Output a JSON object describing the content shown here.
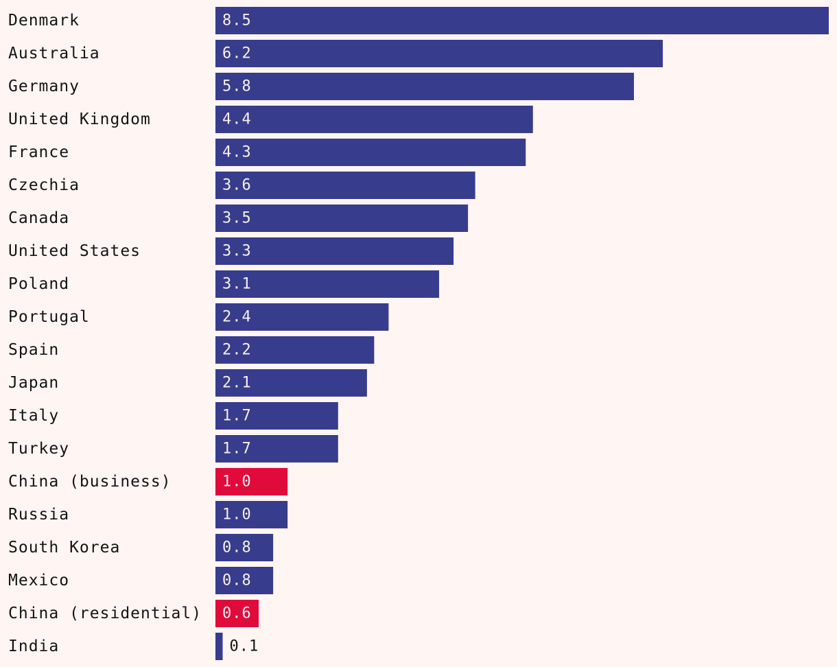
{
  "chart_data": {
    "type": "bar",
    "orientation": "horizontal",
    "categories": [
      "Denmark",
      "Australia",
      "Germany",
      "United Kingdom",
      "France",
      "Czechia",
      "Canada",
      "United States",
      "Poland",
      "Portugal",
      "Spain",
      "Japan",
      "Italy",
      "Turkey",
      "China (business)",
      "Russia",
      "South Korea",
      "Mexico",
      "China (residential)",
      "India"
    ],
    "values": [
      8.5,
      6.2,
      5.8,
      4.4,
      4.3,
      3.6,
      3.5,
      3.3,
      3.1,
      2.4,
      2.2,
      2.1,
      1.7,
      1.7,
      1.0,
      1.0,
      0.8,
      0.8,
      0.6,
      0.1
    ],
    "value_labels": [
      "8.5",
      "6.2",
      "5.8",
      "4.4",
      "4.3",
      "3.6",
      "3.5",
      "3.3",
      "3.1",
      "2.4",
      "2.2",
      "2.1",
      "1.7",
      "1.7",
      "1.0",
      "1.0",
      "0.8",
      "0.8",
      "0.6",
      "0.1"
    ],
    "highlighted": [
      "China (business)",
      "China (residential)"
    ],
    "title": "",
    "xlabel": "",
    "ylabel": "",
    "xlim": [
      0,
      8.5
    ],
    "grid": false,
    "legend": "none",
    "colors": {
      "default": "#383c8c",
      "highlight": "#e00b3b",
      "background": "#fff5f2",
      "label_text": "#141414",
      "value_text_inside": "#f6f1f0",
      "value_text_outside": "#141414"
    }
  }
}
